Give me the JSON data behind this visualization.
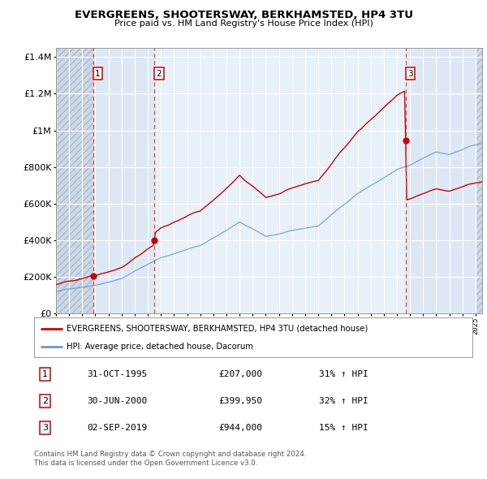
{
  "title": "EVERGREENS, SHOOTERSWAY, BERKHAMSTED, HP4 3TU",
  "subtitle": "Price paid vs. HM Land Registry's House Price Index (HPI)",
  "transactions": [
    {
      "date_num": 1995.833,
      "price": 207000,
      "label": "1"
    },
    {
      "date_num": 2000.5,
      "price": 399950,
      "label": "2"
    },
    {
      "date_num": 2019.667,
      "price": 944000,
      "label": "3"
    }
  ],
  "legend_entries": [
    "EVERGREENS, SHOOTERSWAY, BERKHAMSTED, HP4 3TU (detached house)",
    "HPI: Average price, detached house, Dacorum"
  ],
  "table_rows": [
    {
      "num": "1",
      "date": "31-OCT-1995",
      "price": "£207,000",
      "hpi": "31% ↑ HPI"
    },
    {
      "num": "2",
      "date": "30-JUN-2000",
      "price": "£399,950",
      "hpi": "32% ↑ HPI"
    },
    {
      "num": "3",
      "date": "02-SEP-2019",
      "price": "£944,000",
      "hpi": "15% ↑ HPI"
    }
  ],
  "footnote1": "Contains HM Land Registry data © Crown copyright and database right 2024.",
  "footnote2": "This data is licensed under the Open Government Licence v3.0.",
  "ylim": [
    0,
    1450000
  ],
  "xlim_start": 1993.0,
  "xlim_end": 2025.5,
  "price_line_color": "#cc0000",
  "hpi_line_color": "#6699cc",
  "dashed_vline_color": "#dd4444",
  "bg_color": "#eef3f8",
  "hatch_color": "#c8d4e0",
  "owned_bg_color": "#dde8f4"
}
